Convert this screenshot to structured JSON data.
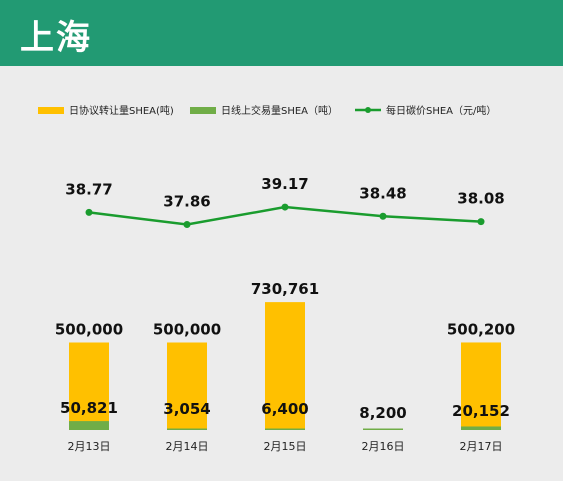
{
  "header": {
    "title": "上海"
  },
  "colors": {
    "header_bg": "#229a73",
    "agreement": "#ffc000",
    "online": "#70ad47",
    "price": "#1a9c2e"
  },
  "chart_data": {
    "type": "bar",
    "categories": [
      "2月13日",
      "2月14日",
      "2月15日",
      "2月16日",
      "2月17日"
    ],
    "series": [
      {
        "name": "日协议转让量SHEA(吨)",
        "kind": "bar",
        "values": [
          500000,
          500000,
          730761,
          0,
          500200
        ],
        "labels": [
          "500,000",
          "500,000",
          "730,761",
          "",
          "500,200"
        ]
      },
      {
        "name": "日线上交易量SHEA（吨）",
        "kind": "bar",
        "values": [
          50821,
          3054,
          6400,
          8200,
          20152
        ],
        "labels": [
          "50,821",
          "3,054",
          "6,400",
          "8,200",
          "20,152"
        ]
      },
      {
        "name": "每日碳价SHEA（元/吨）",
        "kind": "line",
        "values": [
          38.77,
          37.86,
          39.17,
          38.48,
          38.08
        ],
        "labels": [
          "38.77",
          "37.86",
          "39.17",
          "38.48",
          "38.08"
        ]
      }
    ],
    "legend_position": "top"
  }
}
